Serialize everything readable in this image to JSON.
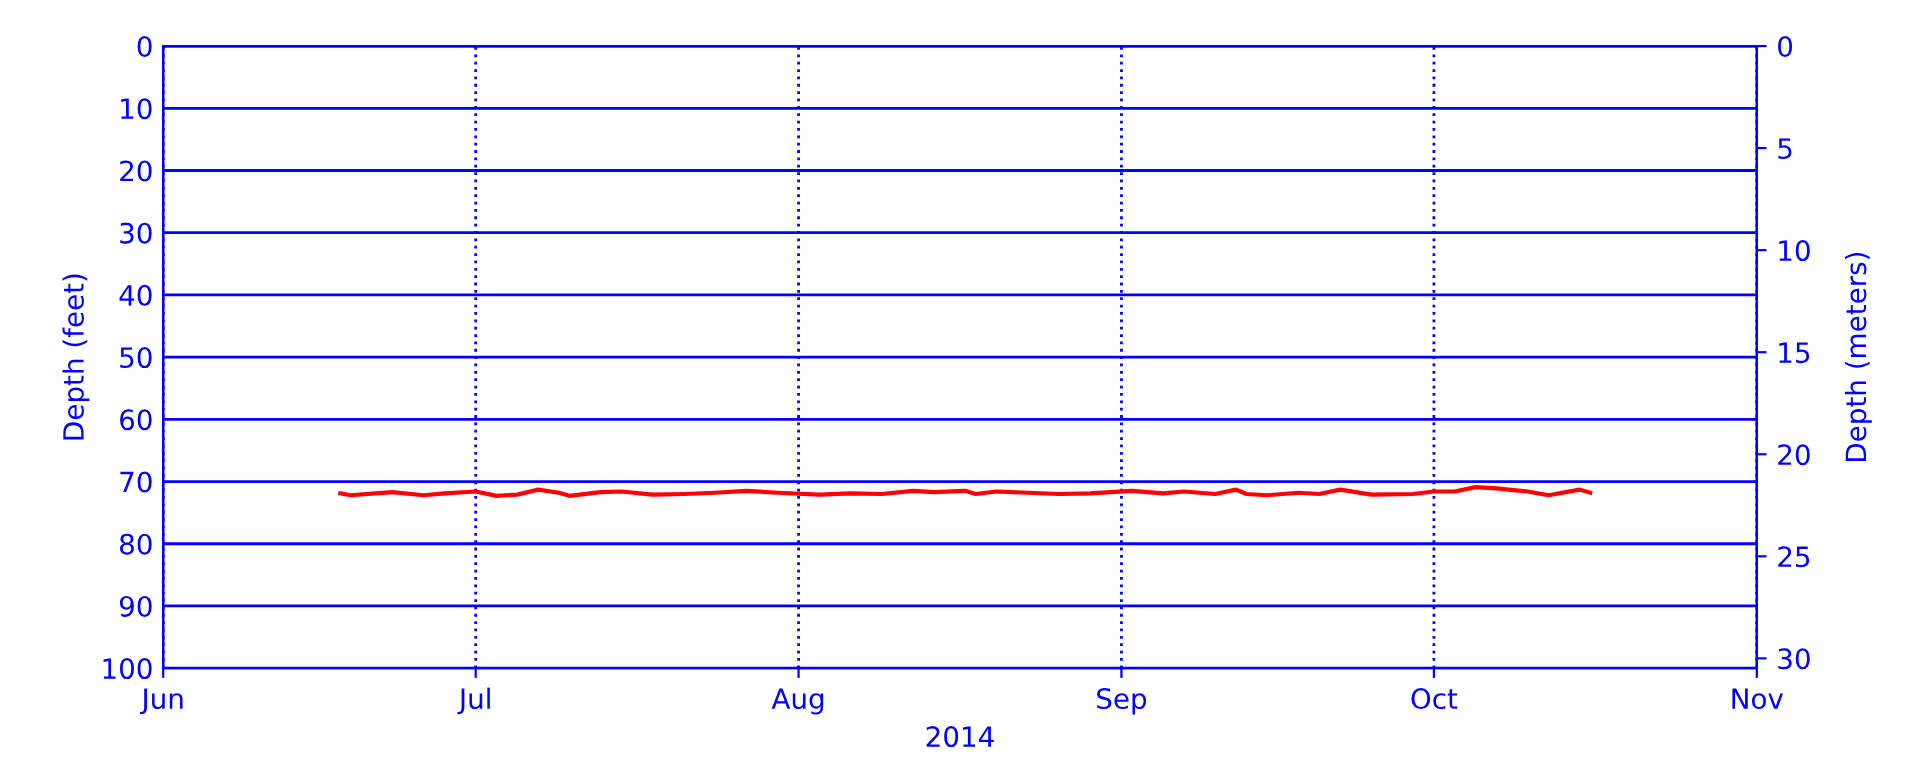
{
  "chart_data": {
    "type": "line",
    "xlabel": "2014",
    "ylabel": "Depth (feet)",
    "y2label": "Depth (meters)",
    "xlim": [
      "2014-06-01",
      "2014-11-01"
    ],
    "xticks": [
      {
        "value": "2014-06-01",
        "label": "Jun"
      },
      {
        "value": "2014-07-01",
        "label": "Jul"
      },
      {
        "value": "2014-08-01",
        "label": "Aug"
      },
      {
        "value": "2014-09-01",
        "label": "Sep"
      },
      {
        "value": "2014-10-01",
        "label": "Oct"
      },
      {
        "value": "2014-11-01",
        "label": "Nov"
      }
    ],
    "ylim": [
      100,
      0
    ],
    "yticks": [
      0,
      10,
      20,
      30,
      40,
      50,
      60,
      70,
      80,
      90,
      100
    ],
    "y2lim": [
      30.48,
      0
    ],
    "y2ticks": [
      0,
      5,
      10,
      15,
      20,
      25,
      30
    ],
    "grid": true,
    "marker": "none",
    "line_style": "solid",
    "series": [
      {
        "color": "#ff0000",
        "x": [
          "2014-06-18",
          "2014-06-19",
          "2014-06-23",
          "2014-06-26",
          "2014-06-28",
          "2014-07-01",
          "2014-07-03",
          "2014-07-05",
          "2014-07-07",
          "2014-07-09",
          "2014-07-10",
          "2014-07-13",
          "2014-07-15",
          "2014-07-18",
          "2014-07-21",
          "2014-07-24",
          "2014-07-27",
          "2014-07-30",
          "2014-08-03",
          "2014-08-06",
          "2014-08-09",
          "2014-08-12",
          "2014-08-14",
          "2014-08-17",
          "2014-08-18",
          "2014-08-20",
          "2014-08-26",
          "2014-08-29",
          "2014-09-02",
          "2014-09-05",
          "2014-09-07",
          "2014-09-10",
          "2014-09-12",
          "2014-09-13",
          "2014-09-15",
          "2014-09-18",
          "2014-09-20",
          "2014-09-22",
          "2014-09-25",
          "2014-09-29",
          "2014-10-01",
          "2014-10-03",
          "2014-10-05",
          "2014-10-07",
          "2014-10-10",
          "2014-10-12",
          "2014-10-15",
          "2014-10-16"
        ],
        "values": [
          71.9,
          72.2,
          71.7,
          72.2,
          71.9,
          71.6,
          72.3,
          72.1,
          71.3,
          71.8,
          72.3,
          71.7,
          71.6,
          72.1,
          72.0,
          71.8,
          71.5,
          71.8,
          72.1,
          71.9,
          72.0,
          71.5,
          71.7,
          71.5,
          72.0,
          71.6,
          72.0,
          71.9,
          71.5,
          71.9,
          71.6,
          72.0,
          71.3,
          72.0,
          72.2,
          71.8,
          72.0,
          71.3,
          72.1,
          72.0,
          71.6,
          71.6,
          70.9,
          71.1,
          71.6,
          72.2,
          71.3,
          71.8
        ]
      }
    ]
  }
}
